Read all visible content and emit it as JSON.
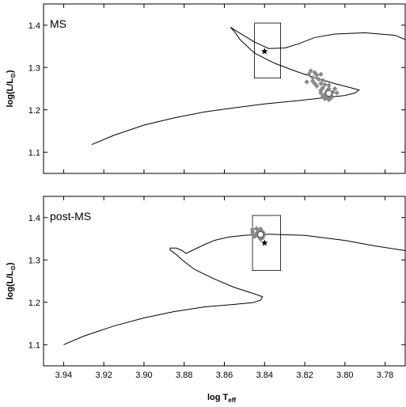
{
  "chart_data": [
    {
      "type": "scatter",
      "panel_label": "MS",
      "xlabel": "",
      "ylabel": "log(L/L⊙)",
      "xlim": [
        3.95,
        3.77
      ],
      "ylim": [
        1.05,
        1.45
      ],
      "x_reversed": true,
      "yticks": [
        "1.1",
        "1.2",
        "1.3",
        "1.4"
      ],
      "ytick_values": [
        1.1,
        1.2,
        1.3,
        1.4
      ],
      "grid": false,
      "track": [
        [
          3.926,
          1.118
        ],
        [
          3.915,
          1.14
        ],
        [
          3.9,
          1.164
        ],
        [
          3.885,
          1.181
        ],
        [
          3.87,
          1.195
        ],
        [
          3.855,
          1.205
        ],
        [
          3.84,
          1.214
        ],
        [
          3.825,
          1.221
        ],
        [
          3.815,
          1.226
        ],
        [
          3.808,
          1.23
        ],
        [
          3.8,
          1.234
        ],
        [
          3.795,
          1.24
        ],
        [
          3.793,
          1.247
        ],
        [
          3.797,
          1.252
        ],
        [
          3.805,
          1.262
        ],
        [
          3.815,
          1.276
        ],
        [
          3.825,
          1.292
        ],
        [
          3.835,
          1.31
        ],
        [
          3.845,
          1.334
        ],
        [
          3.852,
          1.365
        ],
        [
          3.855,
          1.385
        ],
        [
          3.857,
          1.395
        ],
        [
          3.853,
          1.383
        ],
        [
          3.845,
          1.36
        ],
        [
          3.838,
          1.345
        ],
        [
          3.83,
          1.346
        ],
        [
          3.823,
          1.356
        ],
        [
          3.815,
          1.371
        ],
        [
          3.805,
          1.379
        ],
        [
          3.79,
          1.382
        ],
        [
          3.775,
          1.376
        ],
        [
          3.77,
          1.366
        ]
      ],
      "box": {
        "x": [
          3.845,
          3.832
        ],
        "y": [
          1.275,
          1.405
        ]
      },
      "star": [
        3.84,
        1.338
      ],
      "open_circle": [
        3.808,
        1.239
      ],
      "diamonds": [
        [
          3.817,
          1.292
        ],
        [
          3.815,
          1.288
        ],
        [
          3.818,
          1.284
        ],
        [
          3.814,
          1.282
        ],
        [
          3.812,
          1.284
        ],
        [
          3.816,
          1.276
        ],
        [
          3.813,
          1.272
        ],
        [
          3.811,
          1.27
        ],
        [
          3.816,
          1.268
        ],
        [
          3.819,
          1.266
        ],
        [
          3.815,
          1.262
        ],
        [
          3.812,
          1.262
        ],
        [
          3.81,
          1.26
        ],
        [
          3.808,
          1.258
        ],
        [
          3.814,
          1.256
        ],
        [
          3.811,
          1.252
        ],
        [
          3.808,
          1.25
        ],
        [
          3.805,
          1.25
        ],
        [
          3.812,
          1.246
        ],
        [
          3.809,
          1.244
        ],
        [
          3.806,
          1.242
        ],
        [
          3.812,
          1.24
        ],
        [
          3.804,
          1.24
        ],
        [
          3.81,
          1.236
        ],
        [
          3.807,
          1.234
        ],
        [
          3.811,
          1.232
        ],
        [
          3.809,
          1.23
        ],
        [
          3.807,
          1.228
        ],
        [
          3.81,
          1.226
        ],
        [
          3.808,
          1.224
        ]
      ]
    },
    {
      "type": "scatter",
      "panel_label": "post-MS",
      "xlabel": "log Teff",
      "xlabel_main": "log T",
      "xlabel_sub": "eff",
      "ylabel": "log(L/L⊙)",
      "xlim": [
        3.95,
        3.77
      ],
      "ylim": [
        1.05,
        1.45
      ],
      "x_reversed": true,
      "xticks": [
        "3.94",
        "3.92",
        "3.90",
        "3.88",
        "3.86",
        "3.84",
        "3.82",
        "3.80",
        "3.78"
      ],
      "xtick_values": [
        3.94,
        3.92,
        3.9,
        3.88,
        3.86,
        3.84,
        3.82,
        3.8,
        3.78
      ],
      "yticks": [
        "1.1",
        "1.2",
        "1.3",
        "1.4"
      ],
      "ytick_values": [
        1.1,
        1.2,
        1.3,
        1.4
      ],
      "grid": false,
      "track": [
        [
          3.94,
          1.1
        ],
        [
          3.93,
          1.12
        ],
        [
          3.915,
          1.144
        ],
        [
          3.9,
          1.163
        ],
        [
          3.885,
          1.178
        ],
        [
          3.87,
          1.189
        ],
        [
          3.855,
          1.195
        ],
        [
          3.846,
          1.199
        ],
        [
          3.842,
          1.205
        ],
        [
          3.841,
          1.213
        ],
        [
          3.845,
          1.22
        ],
        [
          3.855,
          1.235
        ],
        [
          3.865,
          1.255
        ],
        [
          3.875,
          1.278
        ],
        [
          3.881,
          1.3
        ],
        [
          3.884,
          1.313
        ],
        [
          3.887,
          1.323
        ],
        [
          3.887,
          1.328
        ],
        [
          3.884,
          1.328
        ],
        [
          3.881,
          1.322
        ],
        [
          3.879,
          1.315
        ],
        [
          3.877,
          1.32
        ],
        [
          3.87,
          1.336
        ],
        [
          3.865,
          1.346
        ],
        [
          3.858,
          1.354
        ],
        [
          3.85,
          1.358
        ],
        [
          3.84,
          1.361
        ],
        [
          3.82,
          1.358
        ],
        [
          3.8,
          1.346
        ],
        [
          3.785,
          1.333
        ],
        [
          3.77,
          1.322
        ]
      ],
      "box": {
        "x": [
          3.846,
          3.832
        ],
        "y": [
          1.275,
          1.405
        ]
      },
      "star": [
        3.84,
        1.34
      ],
      "open_circle": [
        3.842,
        1.36
      ],
      "diamonds": [
        [
          3.846,
          1.372
        ],
        [
          3.844,
          1.374
        ],
        [
          3.842,
          1.373
        ],
        [
          3.846,
          1.366
        ],
        [
          3.843,
          1.368
        ],
        [
          3.841,
          1.366
        ],
        [
          3.846,
          1.36
        ],
        [
          3.844,
          1.362
        ],
        [
          3.84,
          1.36
        ],
        [
          3.843,
          1.356
        ],
        [
          3.841,
          1.352
        ],
        [
          3.845,
          1.355
        ],
        [
          3.842,
          1.349
        ]
      ]
    }
  ]
}
